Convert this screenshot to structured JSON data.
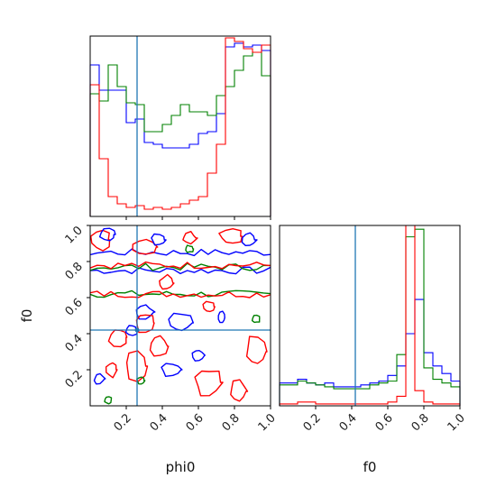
{
  "chart_data": [
    {
      "type": "histogram",
      "panel": "phi0-marginal",
      "xlim": [
        0.0,
        1.0
      ],
      "bins": 20,
      "truth_x": 0.26,
      "series": [
        {
          "color": "#0000ff",
          "values": [
            0.84,
            0.7,
            0.7,
            0.7,
            0.52,
            0.54,
            0.41,
            0.4,
            0.38,
            0.38,
            0.38,
            0.4,
            0.46,
            0.47,
            0.57,
            0.94,
            0.96,
            0.94,
            0.95,
            0.92
          ]
        },
        {
          "color": "#008000",
          "values": [
            0.68,
            0.64,
            0.84,
            0.72,
            0.63,
            0.62,
            0.47,
            0.47,
            0.51,
            0.56,
            0.62,
            0.58,
            0.58,
            0.56,
            0.67,
            0.72,
            0.81,
            0.89,
            0.91,
            0.78
          ]
        },
        {
          "color": "#ff0000",
          "values": [
            0.73,
            0.32,
            0.11,
            0.07,
            0.05,
            0.06,
            0.04,
            0.05,
            0.04,
            0.05,
            0.07,
            0.09,
            0.11,
            0.24,
            0.4,
            0.99,
            0.97,
            0.93,
            0.91,
            0.95
          ]
        }
      ]
    },
    {
      "type": "contour",
      "panel": "phi0-f0-joint",
      "xlabel": "phi0",
      "ylabel": "f0",
      "xlim": [
        0.0,
        1.0
      ],
      "ylim": [
        0.0,
        1.0
      ],
      "xticks": [
        "0.2",
        "0.4",
        "0.6",
        "0.8",
        "1.0"
      ],
      "yticks": [
        "0.2",
        "0.4",
        "0.6",
        "0.8",
        "1.0"
      ],
      "truth": [
        0.26,
        0.42
      ],
      "series": [
        {
          "color": "#0000ff",
          "band": [
            0.75,
            0.85
          ]
        },
        {
          "color": "#008000",
          "band": [
            0.62,
            0.77
          ]
        },
        {
          "color": "#ff0000",
          "band": [
            0.62,
            0.78
          ]
        }
      ]
    },
    {
      "type": "histogram",
      "panel": "f0-marginal",
      "xlabel": "f0",
      "xlim": [
        0.0,
        1.0
      ],
      "xticks": [
        "0.2",
        "0.4",
        "0.6",
        "0.8",
        "1.0"
      ],
      "bins": 20,
      "truth_x": 0.42,
      "series": [
        {
          "color": "#0000ff",
          "values": [
            0.12,
            0.12,
            0.14,
            0.12,
            0.11,
            0.12,
            0.1,
            0.1,
            0.1,
            0.11,
            0.12,
            0.13,
            0.16,
            0.21,
            0.38,
            0.56,
            0.28,
            0.21,
            0.17,
            0.13
          ]
        },
        {
          "color": "#008000",
          "values": [
            0.11,
            0.11,
            0.13,
            0.12,
            0.11,
            0.1,
            0.09,
            0.09,
            0.09,
            0.09,
            0.11,
            0.12,
            0.13,
            0.27,
            0.89,
            0.93,
            0.2,
            0.14,
            0.12,
            0.1
          ]
        },
        {
          "color": "#ff0000",
          "values": [
            0.01,
            0.01,
            0.02,
            0.02,
            0.01,
            0.01,
            0.01,
            0.01,
            0.01,
            0.01,
            0.01,
            0.01,
            0.02,
            0.05,
            1.2,
            0.08,
            0.02,
            0.01,
            0.01,
            0.01
          ]
        }
      ]
    }
  ]
}
